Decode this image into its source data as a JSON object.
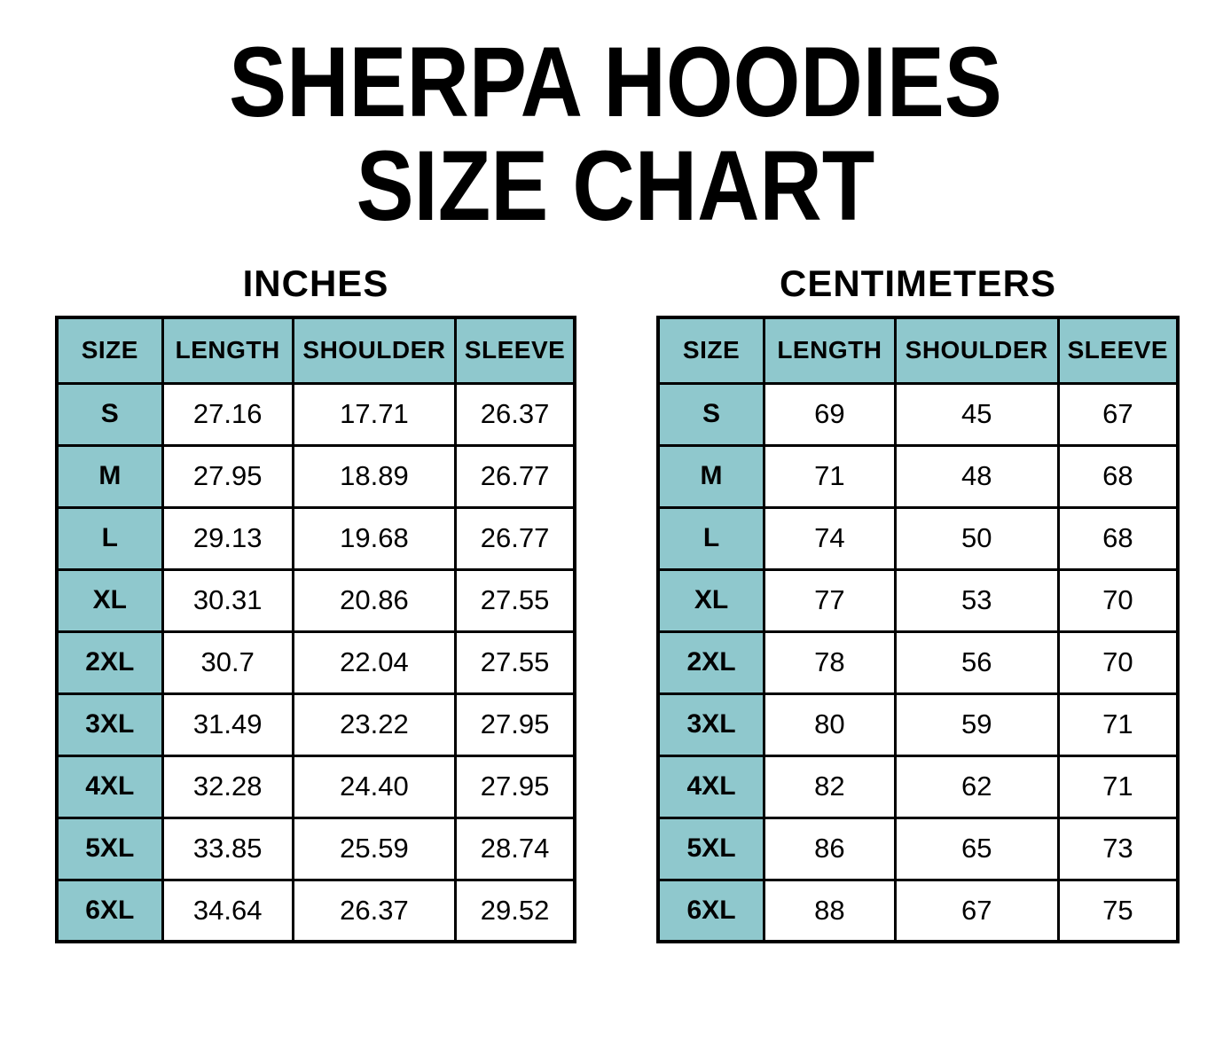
{
  "title": {
    "line1": "SHERPA HOODIES",
    "line2": "SIZE CHART"
  },
  "colors": {
    "header_teal": "#8FC8CD",
    "border": "#000000",
    "background": "#FFFFFF",
    "text": "#000000"
  },
  "chart_data": [
    {
      "type": "table",
      "title": "INCHES",
      "columns": [
        "SIZE",
        "LENGTH",
        "SHOULDER",
        "SLEEVE"
      ],
      "rows": [
        [
          "S",
          "27.16",
          "17.71",
          "26.37"
        ],
        [
          "M",
          "27.95",
          "18.89",
          "26.77"
        ],
        [
          "L",
          "29.13",
          "19.68",
          "26.77"
        ],
        [
          "XL",
          "30.31",
          "20.86",
          "27.55"
        ],
        [
          "2XL",
          "30.7",
          "22.04",
          "27.55"
        ],
        [
          "3XL",
          "31.49",
          "23.22",
          "27.95"
        ],
        [
          "4XL",
          "32.28",
          "24.40",
          "27.95"
        ],
        [
          "5XL",
          "33.85",
          "25.59",
          "28.74"
        ],
        [
          "6XL",
          "34.64",
          "26.37",
          "29.52"
        ]
      ]
    },
    {
      "type": "table",
      "title": "CENTIMETERS",
      "columns": [
        "SIZE",
        "LENGTH",
        "SHOULDER",
        "SLEEVE"
      ],
      "rows": [
        [
          "S",
          "69",
          "45",
          "67"
        ],
        [
          "M",
          "71",
          "48",
          "68"
        ],
        [
          "L",
          "74",
          "50",
          "68"
        ],
        [
          "XL",
          "77",
          "53",
          "70"
        ],
        [
          "2XL",
          "78",
          "56",
          "70"
        ],
        [
          "3XL",
          "80",
          "59",
          "71"
        ],
        [
          "4XL",
          "82",
          "62",
          "71"
        ],
        [
          "5XL",
          "86",
          "65",
          "73"
        ],
        [
          "6XL",
          "88",
          "67",
          "75"
        ]
      ]
    }
  ]
}
